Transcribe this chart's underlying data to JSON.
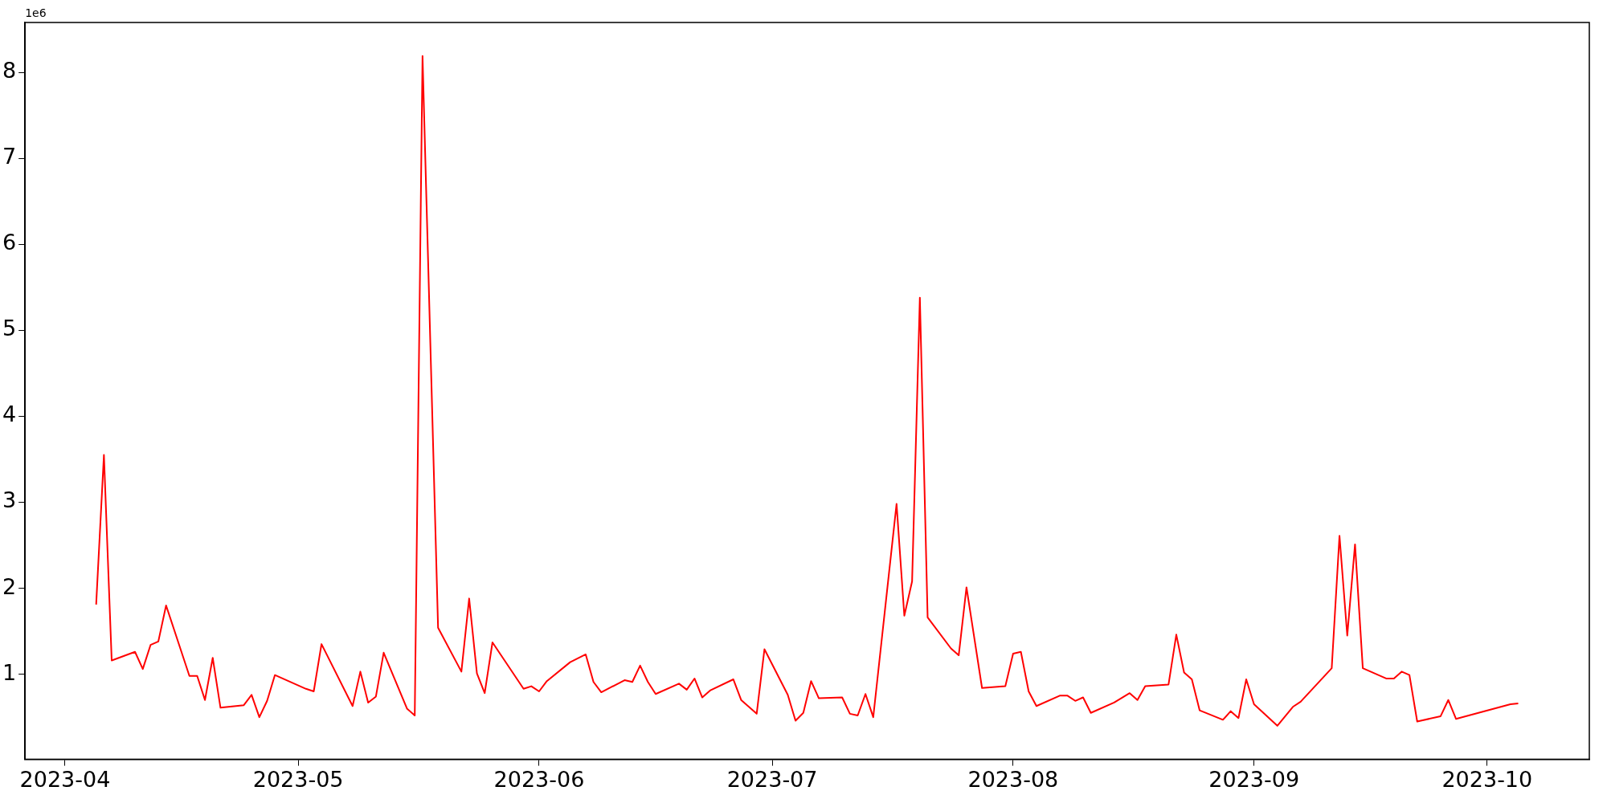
{
  "chart_data": {
    "type": "line",
    "annotations": [
      "1e6"
    ],
    "grid": false,
    "x": [
      "2023-04-05",
      "2023-04-06",
      "2023-04-07",
      "2023-04-10",
      "2023-04-11",
      "2023-04-12",
      "2023-04-13",
      "2023-04-14",
      "2023-04-17",
      "2023-04-18",
      "2023-04-19",
      "2023-04-20",
      "2023-04-21",
      "2023-04-24",
      "2023-04-25",
      "2023-04-26",
      "2023-04-27",
      "2023-04-28",
      "2023-05-02",
      "2023-05-03",
      "2023-05-04",
      "2023-05-08",
      "2023-05-09",
      "2023-05-10",
      "2023-05-11",
      "2023-05-12",
      "2023-05-15",
      "2023-05-16",
      "2023-05-17",
      "2023-05-19",
      "2023-05-22",
      "2023-05-23",
      "2023-05-24",
      "2023-05-25",
      "2023-05-26",
      "2023-05-30",
      "2023-05-31",
      "2023-06-01",
      "2023-06-02",
      "2023-06-05",
      "2023-06-07",
      "2023-06-08",
      "2023-06-09",
      "2023-06-12",
      "2023-06-13",
      "2023-06-14",
      "2023-06-15",
      "2023-06-16",
      "2023-06-19",
      "2023-06-20",
      "2023-06-21",
      "2023-06-22",
      "2023-06-23",
      "2023-06-26",
      "2023-06-27",
      "2023-06-28",
      "2023-06-29",
      "2023-06-30",
      "2023-07-03",
      "2023-07-04",
      "2023-07-05",
      "2023-07-06",
      "2023-07-07",
      "2023-07-10",
      "2023-07-11",
      "2023-07-12",
      "2023-07-13",
      "2023-07-14",
      "2023-07-17",
      "2023-07-18",
      "2023-07-19",
      "2023-07-20",
      "2023-07-21",
      "2023-07-24",
      "2023-07-25",
      "2023-07-26",
      "2023-07-28",
      "2023-07-31",
      "2023-08-01",
      "2023-08-02",
      "2023-08-03",
      "2023-08-04",
      "2023-08-07",
      "2023-08-08",
      "2023-08-09",
      "2023-08-10",
      "2023-08-11",
      "2023-08-14",
      "2023-08-16",
      "2023-08-17",
      "2023-08-18",
      "2023-08-21",
      "2023-08-22",
      "2023-08-23",
      "2023-08-24",
      "2023-08-25",
      "2023-08-28",
      "2023-08-29",
      "2023-08-30",
      "2023-08-31",
      "2023-09-01",
      "2023-09-04",
      "2023-09-06",
      "2023-09-07",
      "2023-09-11",
      "2023-09-12",
      "2023-09-13",
      "2023-09-14",
      "2023-09-15",
      "2023-09-18",
      "2023-09-19",
      "2023-09-20",
      "2023-09-21",
      "2023-09-22",
      "2023-09-25",
      "2023-09-26",
      "2023-09-27",
      "2023-10-04",
      "2023-10-05"
    ],
    "series": [
      {
        "color": "#ff0000",
        "values": [
          1.81,
          3.55,
          1.16,
          1.26,
          1.06,
          1.34,
          1.38,
          1.8,
          0.98,
          0.98,
          0.7,
          1.19,
          0.61,
          0.64,
          0.76,
          0.5,
          0.69,
          0.99,
          0.83,
          0.8,
          1.35,
          0.63,
          1.03,
          0.67,
          0.74,
          1.25,
          0.6,
          0.52,
          8.19,
          1.54,
          1.03,
          1.88,
          1.01,
          0.78,
          1.37,
          0.83,
          0.86,
          0.8,
          0.92,
          1.14,
          1.23,
          0.91,
          0.79,
          0.93,
          0.91,
          1.1,
          0.91,
          0.77,
          0.89,
          0.82,
          0.95,
          0.73,
          0.81,
          0.94,
          0.7,
          0.62,
          0.54,
          1.29,
          0.76,
          0.46,
          0.55,
          0.92,
          0.72,
          0.73,
          0.54,
          0.52,
          0.77,
          0.5,
          2.98,
          1.68,
          2.08,
          5.38,
          1.66,
          1.3,
          1.22,
          2.01,
          0.84,
          0.86,
          1.24,
          1.26,
          0.8,
          0.63,
          0.75,
          0.75,
          0.69,
          0.73,
          0.55,
          0.67,
          0.78,
          0.7,
          0.86,
          0.88,
          1.46,
          1.02,
          0.94,
          0.58,
          0.47,
          0.57,
          0.49,
          0.94,
          0.65,
          0.4,
          0.62,
          0.68,
          1.07,
          2.61,
          1.45,
          2.51,
          1.07,
          0.95,
          0.95,
          1.03,
          0.99,
          0.45,
          0.51,
          0.7,
          0.48,
          0.65,
          0.66
        ]
      }
    ],
    "xlim": [
      "2023-03-26T20:24",
      "2023-10-14T03:36"
    ],
    "ylim": [
      0.01,
      8.58
    ],
    "xticks": [
      "2023-04",
      "2023-05",
      "2023-06",
      "2023-07",
      "2023-08",
      "2023-09",
      "2023-10"
    ],
    "yticks": [
      1,
      2,
      3,
      4,
      5,
      6,
      7,
      8
    ]
  }
}
